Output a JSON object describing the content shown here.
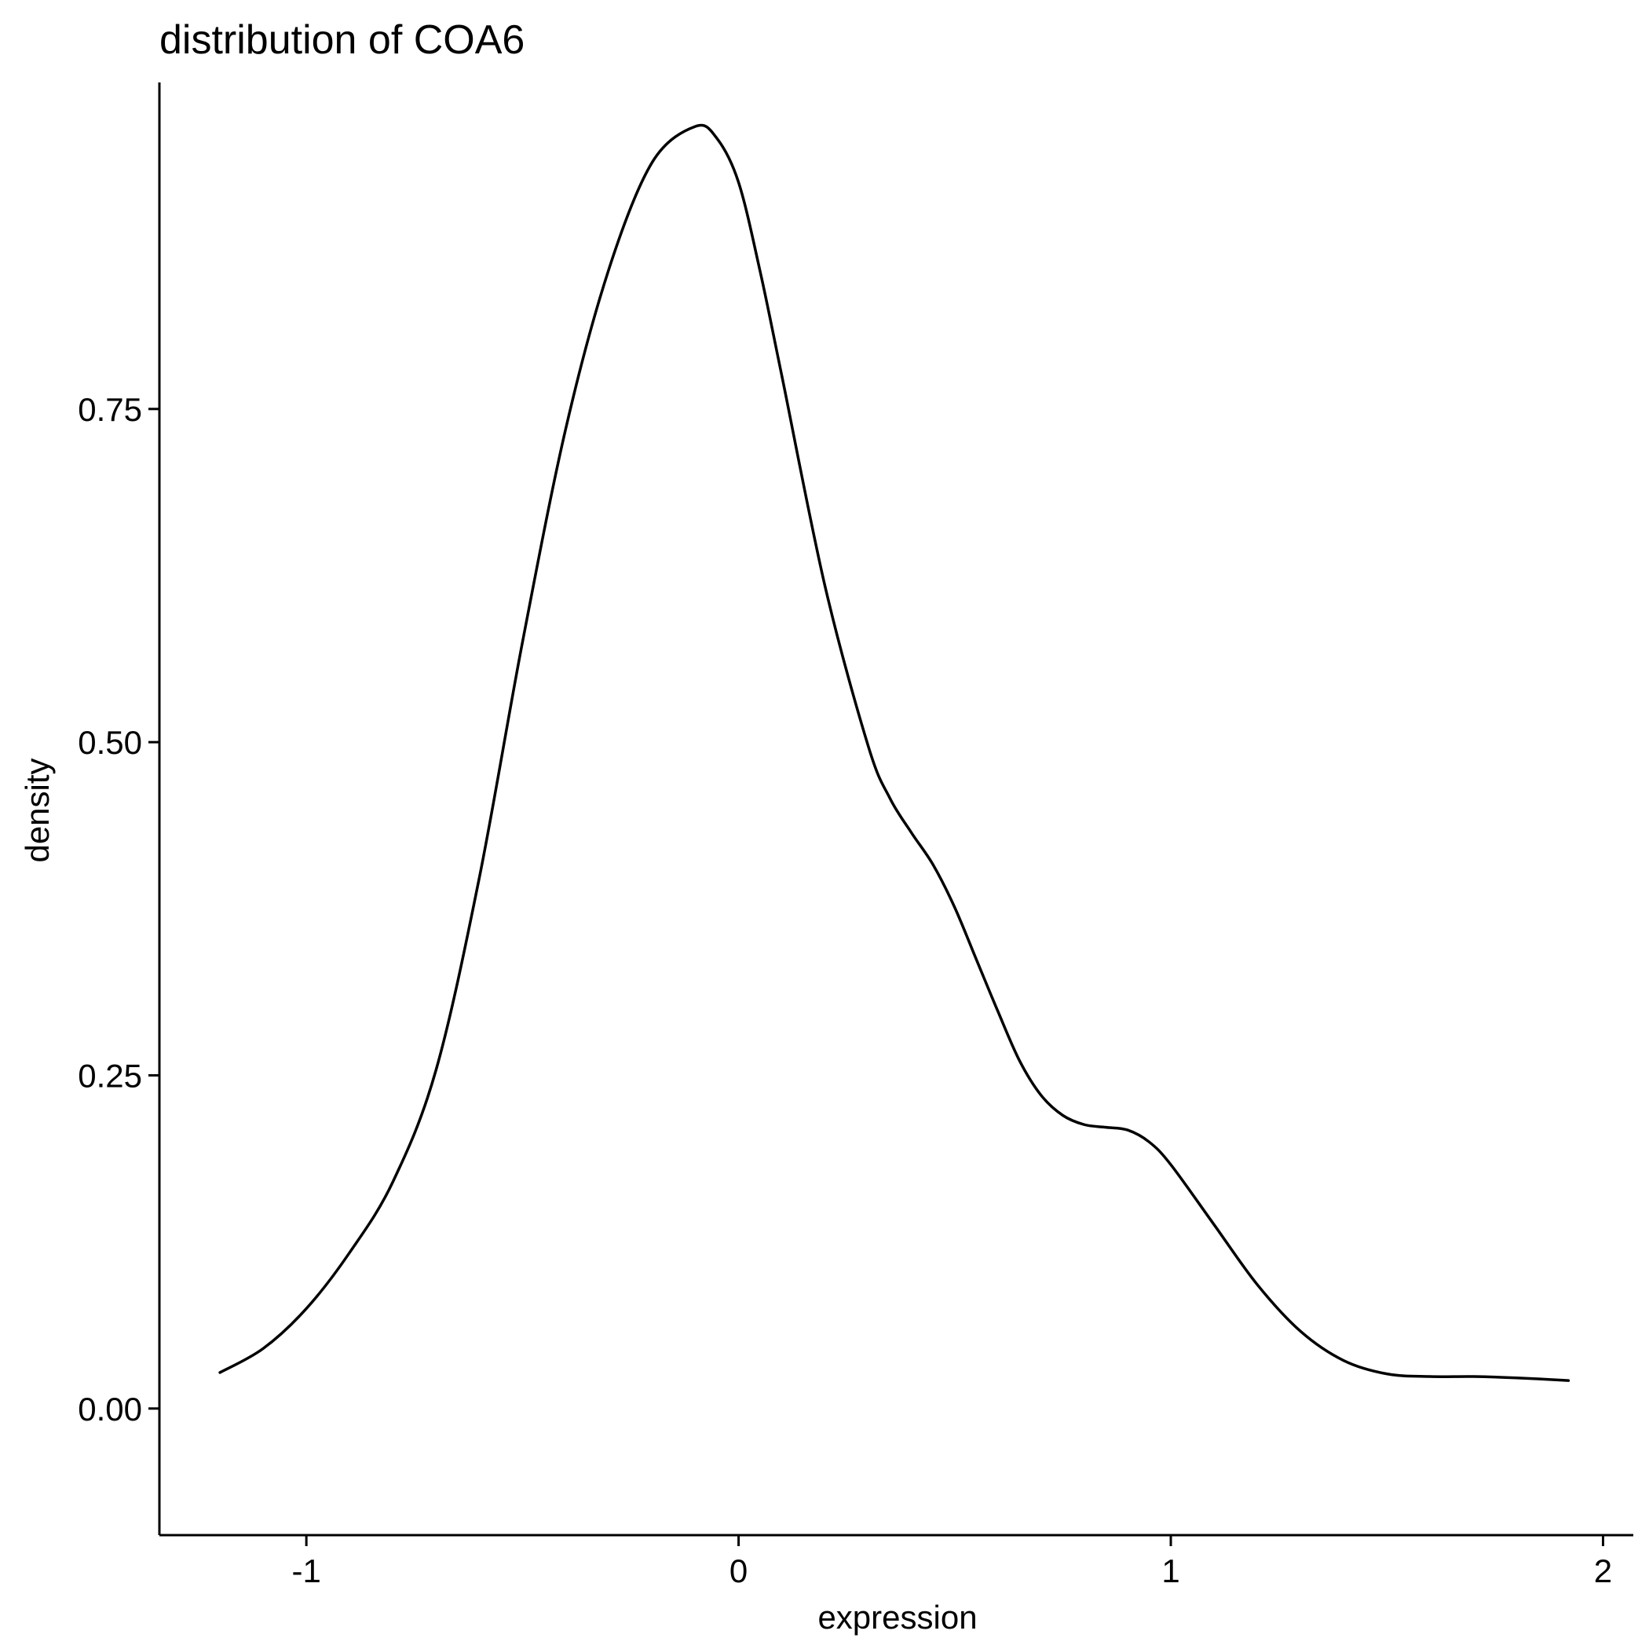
{
  "chart_data": {
    "type": "line",
    "title": "distribution of COA6",
    "xlabel": "expression",
    "ylabel": "density",
    "xlim": [
      -1.34,
      2.07
    ],
    "ylim": [
      -0.095,
      0.995
    ],
    "xticks": [
      -1,
      0,
      1,
      2
    ],
    "xtick_labels": [
      "-1",
      "0",
      "1",
      "2"
    ],
    "yticks": [
      0,
      0.25,
      0.5,
      0.75
    ],
    "ytick_labels": [
      "0.00",
      "0.25",
      "0.50",
      "0.75"
    ],
    "grid": false,
    "legend": "none",
    "series": [
      {
        "color": "#000000",
        "x": [
          -1.2,
          -1.1,
          -1.0,
          -0.9,
          -0.8,
          -0.7,
          -0.6,
          -0.5,
          -0.4,
          -0.3,
          -0.2,
          -0.1,
          -0.05,
          0.0,
          0.05,
          0.1,
          0.2,
          0.3,
          0.35,
          0.4,
          0.45,
          0.5,
          0.55,
          0.6,
          0.65,
          0.7,
          0.75,
          0.8,
          0.85,
          0.9,
          0.95,
          1.0,
          1.1,
          1.2,
          1.3,
          1.4,
          1.5,
          1.6,
          1.7,
          1.8,
          1.92
        ],
        "y": [
          0.027,
          0.045,
          0.075,
          0.117,
          0.17,
          0.254,
          0.398,
          0.575,
          0.735,
          0.855,
          0.935,
          0.962,
          0.953,
          0.92,
          0.853,
          0.775,
          0.617,
          0.497,
          0.458,
          0.432,
          0.408,
          0.376,
          0.337,
          0.298,
          0.261,
          0.235,
          0.22,
          0.213,
          0.211,
          0.209,
          0.2,
          0.183,
          0.138,
          0.093,
          0.058,
          0.036,
          0.026,
          0.024,
          0.024,
          0.023,
          0.021
        ]
      }
    ]
  }
}
